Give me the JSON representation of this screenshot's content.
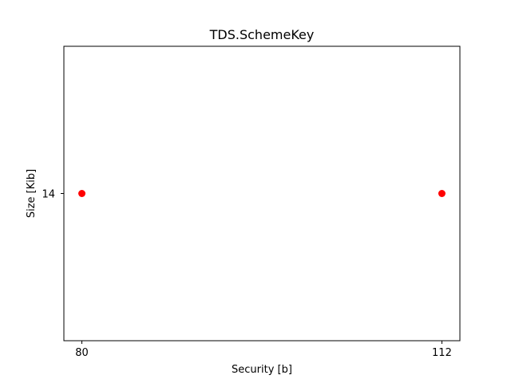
{
  "chart_data": {
    "type": "scatter",
    "title": "TDS.SchemeKey",
    "xlabel": "Security [b]",
    "ylabel": "Size [Kib]",
    "x_ticks": [
      80,
      112
    ],
    "y_ticks": [
      14
    ],
    "xlim": [
      78.4,
      113.6
    ],
    "ylim": [
      13.945,
      14.055
    ],
    "grid": false,
    "marker_color": "#ff0000",
    "points": [
      {
        "x": 80,
        "y": 14
      },
      {
        "x": 112,
        "y": 14
      }
    ]
  }
}
